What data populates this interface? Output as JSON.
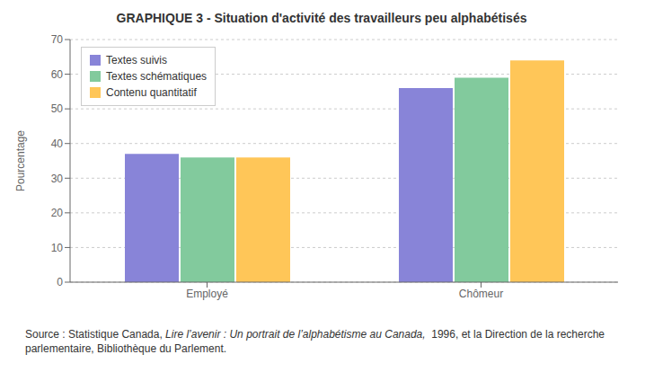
{
  "chart_data": {
    "type": "bar",
    "title": "GRAPHIQUE 3 - Situation d'activité des travailleurs peu alphabétisés",
    "categories": [
      "Employé",
      "Chômeur"
    ],
    "series": [
      {
        "name": "Textes suivis",
        "color": "#8884d8",
        "values": [
          37,
          56
        ]
      },
      {
        "name": "Textes schématiques",
        "color": "#82ca9d",
        "values": [
          36,
          59
        ]
      },
      {
        "name": "Contenu quantitatif",
        "color": "#ffc658",
        "values": [
          36,
          64
        ]
      }
    ],
    "ylabel": "Pourcentage",
    "ylim": [
      0,
      70
    ],
    "yticks": [
      0,
      10,
      20,
      30,
      40,
      50,
      60,
      70
    ],
    "grid": true,
    "legend": "upper left",
    "annotations": [
      "Source : Statistique Canada, ",
      "Lire l’avenir : Un portrait de l’alphabétisme au Canada,",
      "  1996, et la Direction de la recherche\nparlementaire, Bibliothèque du Parlement."
    ]
  }
}
